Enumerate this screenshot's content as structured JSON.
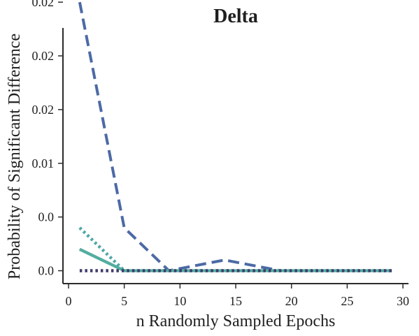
{
  "chart_data": {
    "type": "line",
    "title": "Delta",
    "xlabel": "n Randomly Sampled Epochs",
    "ylabel": "Probability of Significant Difference",
    "xlim": [
      -0.5,
      30.5
    ],
    "ylim": [
      -0.0012,
      0.0226
    ],
    "grid": false,
    "x_ticks": [
      0,
      5,
      10,
      15,
      20,
      25,
      30
    ],
    "x_tick_labels": [
      "0",
      "5",
      "10",
      "15",
      "20",
      "25",
      "30"
    ],
    "y_ticks": [
      0.0,
      0.005,
      0.01,
      0.015,
      0.02,
      0.025
    ],
    "y_tick_labels": [
      "0.0",
      "0.0",
      "0.01",
      "0.02",
      "0.02",
      "0.02"
    ],
    "series": [
      {
        "color": "#4c6aa5",
        "style": "dashed",
        "x": [
          1,
          5,
          9,
          14,
          19,
          24,
          29
        ],
        "values": [
          0.025,
          0.004,
          0.0,
          0.001,
          0.0,
          0.0,
          0.0
        ]
      },
      {
        "color": "#4fa8a8",
        "style": "dotted",
        "x": [
          1,
          5,
          9,
          14,
          19,
          24,
          29
        ],
        "values": [
          0.004,
          0.0,
          0.0,
          0.0,
          0.0,
          0.0,
          0.0
        ]
      },
      {
        "color": "#3d3650",
        "style": "solid",
        "x": [
          1,
          5,
          9,
          14,
          19,
          24,
          29
        ],
        "values": [
          0.002,
          0.0,
          0.0,
          0.0,
          0.0,
          0.0,
          0.0
        ]
      },
      {
        "color": "#4fb0a0",
        "style": "solid",
        "x": [
          1,
          5,
          9,
          14,
          19,
          24,
          29
        ],
        "values": [
          0.002,
          0.0,
          0.0,
          0.0,
          0.0,
          0.0,
          0.0
        ]
      },
      {
        "color": "#3f3a6a",
        "style": "dotted",
        "x": [
          1,
          5,
          9,
          14,
          19,
          24,
          29
        ],
        "values": [
          0.0,
          0.0,
          0.0,
          0.0,
          0.0,
          0.0,
          0.0
        ]
      }
    ]
  }
}
